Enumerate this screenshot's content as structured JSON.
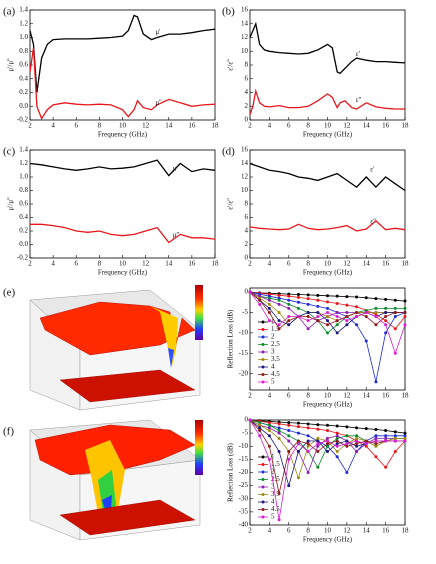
{
  "chart_data": [
    {
      "type": "line",
      "label": "(a)",
      "xlabel": "Frequency (GHz)",
      "ylabel": "μ'/μ''",
      "x": [
        2,
        2.3,
        2.6,
        3,
        3.5,
        4,
        5,
        6,
        7,
        8,
        9,
        10,
        10.5,
        11,
        11.3,
        11.8,
        12.5,
        13,
        14,
        15,
        16,
        17,
        18
      ],
      "xlim": [
        2,
        18
      ],
      "xticks": [
        2,
        4,
        6,
        8,
        10,
        12,
        14,
        16,
        18
      ],
      "ylim": [
        -0.2,
        1.4
      ],
      "yticks": [
        -0.2,
        {
          "value": 0,
          "label": "0.0"
        },
        0.2,
        0.4,
        0.6,
        0.8,
        {
          "value": 1,
          "label": "1.0"
        },
        1.2,
        1.4
      ],
      "series": [
        {
          "name": "μ'",
          "color": "#000000",
          "values": [
            1.1,
            0.9,
            0.2,
            0.7,
            0.9,
            0.97,
            0.98,
            0.98,
            0.98,
            0.99,
            1.0,
            1.02,
            1.1,
            1.32,
            1.3,
            1.05,
            0.97,
            1.0,
            1.05,
            1.05,
            1.07,
            1.1,
            1.12
          ]
        },
        {
          "name": "μ''",
          "color": "#e8161b",
          "values": [
            0.5,
            0.85,
            0.0,
            -0.18,
            -0.05,
            0.02,
            0.05,
            0.03,
            0.02,
            0.03,
            0.02,
            -0.05,
            -0.15,
            -0.05,
            0.08,
            -0.02,
            -0.05,
            0.02,
            0.1,
            0.05,
            0.0,
            0.02,
            0.03
          ]
        }
      ]
    },
    {
      "type": "line",
      "label": "(b)",
      "xlabel": "Frequency (GHz)",
      "ylabel": "ε'/ε''",
      "x": [
        2,
        2.3,
        2.6,
        3,
        3.5,
        4,
        5,
        6,
        7,
        8,
        9,
        10,
        10.5,
        11,
        11.3,
        11.8,
        12.5,
        13,
        14,
        15,
        16,
        17,
        18
      ],
      "xlim": [
        2,
        18
      ],
      "xticks": [
        2,
        4,
        6,
        8,
        10,
        12,
        14,
        16,
        18
      ],
      "ylim": [
        0,
        16
      ],
      "yticks": [
        0,
        2,
        4,
        6,
        8,
        10,
        12,
        14,
        16
      ],
      "series": [
        {
          "name": "ε'",
          "color": "#000000",
          "values": [
            12,
            13,
            14,
            11,
            10.2,
            10,
            9.8,
            9.7,
            9.6,
            9.7,
            10.2,
            11,
            10.5,
            7,
            6.8,
            7.5,
            8.5,
            9,
            8.7,
            8.5,
            8.5,
            8.4,
            8.3
          ]
        },
        {
          "name": "ε''",
          "color": "#e8161b",
          "values": [
            0.8,
            2,
            4.2,
            2.5,
            2,
            1.9,
            2.1,
            1.8,
            1.8,
            2,
            2.8,
            3.8,
            3.3,
            1.8,
            2.5,
            2.8,
            1.8,
            1.6,
            2.5,
            1.9,
            1.7,
            1.6,
            1.6
          ]
        }
      ]
    },
    {
      "type": "line",
      "label": "(c)",
      "xlabel": "Frequency (GHz)",
      "ylabel": "μ'/μ''",
      "x": [
        2,
        3,
        4,
        5,
        6,
        7,
        8,
        9,
        10,
        11,
        12,
        13,
        14,
        15,
        16,
        17,
        18
      ],
      "xlim": [
        2,
        18
      ],
      "xticks": [
        2,
        4,
        6,
        8,
        10,
        12,
        14,
        16,
        18
      ],
      "ylim": [
        -0.2,
        1.4
      ],
      "yticks": [
        -0.2,
        {
          "value": 0,
          "label": "0.0"
        },
        0.2,
        0.4,
        0.6,
        0.8,
        {
          "value": 1,
          "label": "1.0"
        },
        1.2,
        1.4
      ],
      "series": [
        {
          "name": "μ'",
          "color": "#000000",
          "values": [
            1.2,
            1.18,
            1.15,
            1.12,
            1.1,
            1.12,
            1.15,
            1.12,
            1.13,
            1.15,
            1.2,
            1.25,
            1.02,
            1.2,
            1.08,
            1.12,
            1.1
          ]
        },
        {
          "name": "μ''",
          "color": "#e8161b",
          "values": [
            0.3,
            0.3,
            0.28,
            0.25,
            0.2,
            0.18,
            0.2,
            0.15,
            0.13,
            0.15,
            0.2,
            0.25,
            0.03,
            0.15,
            0.1,
            0.1,
            0.08
          ]
        }
      ]
    },
    {
      "type": "line",
      "label": "(d)",
      "xlabel": "Frequency (GHz)",
      "ylabel": "ε'/ε''",
      "x": [
        2,
        3,
        4,
        5,
        6,
        7,
        8,
        9,
        10,
        11,
        12,
        13,
        14,
        15,
        16,
        17,
        18
      ],
      "xlim": [
        2,
        18
      ],
      "xticks": [
        2,
        4,
        6,
        8,
        10,
        12,
        14,
        16,
        18
      ],
      "ylim": [
        0,
        16
      ],
      "yticks": [
        0,
        2,
        4,
        6,
        8,
        10,
        12,
        14,
        16
      ],
      "series": [
        {
          "name": "ε'",
          "color": "#000000",
          "values": [
            14,
            13.5,
            13,
            12.8,
            12.5,
            12,
            11.8,
            11.5,
            12,
            12.5,
            11.5,
            10.5,
            12,
            10.5,
            12,
            11,
            10
          ]
        },
        {
          "name": "ε''",
          "color": "#e8161b",
          "values": [
            4.6,
            4.4,
            4.3,
            4.2,
            4.3,
            5,
            4.4,
            4.2,
            4.3,
            4.5,
            4.8,
            4.0,
            4.3,
            5.5,
            4.2,
            4.4,
            4.2
          ]
        }
      ]
    },
    {
      "type": "line",
      "label": "(e)",
      "markers": true,
      "legend": "lower-left",
      "xlabel": "Frequency (GHz)",
      "ylabel": "Reflection Loss (dB)",
      "x": [
        2,
        3,
        4,
        5,
        6,
        7,
        8,
        9,
        10,
        11,
        12,
        13,
        14,
        15,
        16,
        17,
        18
      ],
      "xlim": [
        2,
        18
      ],
      "xticks": [
        2,
        4,
        6,
        8,
        10,
        12,
        14,
        16,
        18
      ],
      "ylim": [
        -24,
        1
      ],
      "yticks": [
        0,
        -5,
        -10,
        -15,
        -20
      ],
      "series": [
        {
          "name": "1",
          "color": "#000000",
          "values": [
            0,
            -0.2,
            -0.3,
            -0.4,
            -0.5,
            -0.6,
            -0.7,
            -0.8,
            -0.9,
            -1,
            -1.1,
            -1.2,
            -1.4,
            -1.6,
            -1.8,
            -2,
            -2.2
          ]
        },
        {
          "name": "1.5",
          "color": "#e8161b",
          "values": [
            0,
            -0.3,
            -0.5,
            -0.8,
            -1,
            -1.3,
            -1.6,
            -2,
            -2.4,
            -2.8,
            -3.2,
            -3.6,
            -4.5,
            -5.5,
            -7,
            -9,
            -6
          ]
        },
        {
          "name": "2",
          "color": "#1f2bd6",
          "values": [
            0,
            -0.5,
            -1,
            -1.5,
            -2,
            -2.5,
            -3,
            -3.5,
            -4,
            -5,
            -6,
            -8,
            -12,
            -22,
            -10,
            -6,
            -5
          ]
        },
        {
          "name": "2.5",
          "color": "#0c8a2e",
          "values": [
            0,
            -1,
            -1.5,
            -2,
            -3,
            -4,
            -5,
            -7,
            -10,
            -8,
            -6,
            -5,
            -4.5,
            -4,
            -4,
            -4,
            -4
          ]
        },
        {
          "name": "3",
          "color": "#8a1fb0",
          "values": [
            0,
            -1,
            -2,
            -3,
            -4,
            -6,
            -9,
            -7,
            -6,
            -5,
            -5,
            -5,
            -5,
            -5,
            -5,
            -5,
            -5
          ]
        },
        {
          "name": "3.5",
          "color": "#a08a10",
          "values": [
            0,
            -1.5,
            -3,
            -5,
            -8,
            -6,
            -5,
            -5,
            -6,
            -7,
            -6,
            -5,
            -5,
            -5,
            -5,
            -5,
            -5
          ]
        },
        {
          "name": "4",
          "color": "#1a1a80",
          "values": [
            0,
            -2,
            -4,
            -7,
            -8,
            -6,
            -5,
            -5,
            -7,
            -10,
            -8,
            -6,
            -5,
            -6,
            -5,
            -5,
            -5
          ]
        },
        {
          "name": "4.5",
          "color": "#8b1a1a",
          "values": [
            0,
            -2,
            -5,
            -9,
            -7,
            -6,
            -6,
            -7,
            -8,
            -7,
            -6,
            -5,
            -6,
            -8,
            -6,
            -5,
            -5
          ]
        },
        {
          "name": "5",
          "color": "#d61fd0",
          "values": [
            0,
            -3,
            -7,
            -8,
            -6,
            -6,
            -7,
            -6,
            -5,
            -6,
            -7,
            -6,
            -5,
            -6,
            -8,
            -15,
            -8
          ]
        }
      ]
    },
    {
      "type": "line",
      "label": "(f)",
      "markers": true,
      "legend": "lower-left",
      "xlabel": "Frequency (GHz)",
      "ylabel": "Reflection Loss (dB)",
      "x": [
        2,
        3,
        4,
        5,
        6,
        7,
        8,
        9,
        10,
        11,
        12,
        13,
        14,
        15,
        16,
        17,
        18
      ],
      "xlim": [
        2,
        18
      ],
      "xticks": [
        2,
        4,
        6,
        8,
        10,
        12,
        14,
        16,
        18
      ],
      "ylim": [
        -40,
        0
      ],
      "yticks": [
        0,
        -5,
        -10,
        -15,
        -20,
        -25,
        -30,
        -35,
        -40
      ],
      "series": [
        {
          "name": "1",
          "color": "#000000",
          "values": [
            0,
            -0.3,
            -0.5,
            -0.8,
            -1,
            -1.2,
            -1.5,
            -1.8,
            -2,
            -2.3,
            -2.6,
            -3,
            -3.3,
            -3.6,
            -4,
            -4.5,
            -5
          ]
        },
        {
          "name": "1.5",
          "color": "#e8161b",
          "values": [
            0,
            -0.5,
            -1,
            -1.5,
            -2,
            -2.5,
            -3,
            -3.5,
            -4,
            -5,
            -6,
            -8,
            -10,
            -14,
            -18,
            -12,
            -8
          ]
        },
        {
          "name": "2",
          "color": "#1f2bd6",
          "values": [
            0,
            -1,
            -2,
            -3,
            -4,
            -5,
            -6,
            -8,
            -10,
            -14,
            -20,
            -12,
            -8,
            -6,
            -6,
            -6,
            -6
          ]
        },
        {
          "name": "2.5",
          "color": "#0c8a2e",
          "values": [
            0,
            -1,
            -2,
            -4,
            -6,
            -8,
            -12,
            -18,
            -10,
            -7,
            -6,
            -6,
            -8,
            -10,
            -8,
            -7,
            -7
          ]
        },
        {
          "name": "3",
          "color": "#8a1fb0",
          "values": [
            0,
            -2,
            -3,
            -5,
            -8,
            -12,
            -20,
            -10,
            -7,
            -6,
            -8,
            -12,
            -9,
            -7,
            -7,
            -7,
            -7
          ]
        },
        {
          "name": "3.5",
          "color": "#a08a10",
          "values": [
            0,
            -2,
            -4,
            -7,
            -12,
            -22,
            -10,
            -7,
            -8,
            -12,
            -9,
            -7,
            -8,
            -10,
            -8,
            -7,
            -7
          ]
        },
        {
          "name": "4",
          "color": "#1a1a80",
          "values": [
            0,
            -3,
            -6,
            -12,
            -25,
            -12,
            -8,
            -8,
            -12,
            -9,
            -8,
            -10,
            -9,
            -8,
            -8,
            -8,
            -8
          ]
        },
        {
          "name": "4.5",
          "color": "#8b1a1a",
          "values": [
            0,
            -4,
            -10,
            -28,
            -12,
            -8,
            -9,
            -12,
            -9,
            -8,
            -10,
            -9,
            -8,
            -9,
            -8,
            -8,
            -8
          ]
        },
        {
          "name": "5",
          "color": "#d61fd0",
          "values": [
            0,
            -6,
            -15,
            -38,
            -15,
            -9,
            -12,
            -9,
            -8,
            -10,
            -9,
            -8,
            -9,
            -8,
            -8,
            -8,
            -8
          ]
        }
      ]
    }
  ]
}
